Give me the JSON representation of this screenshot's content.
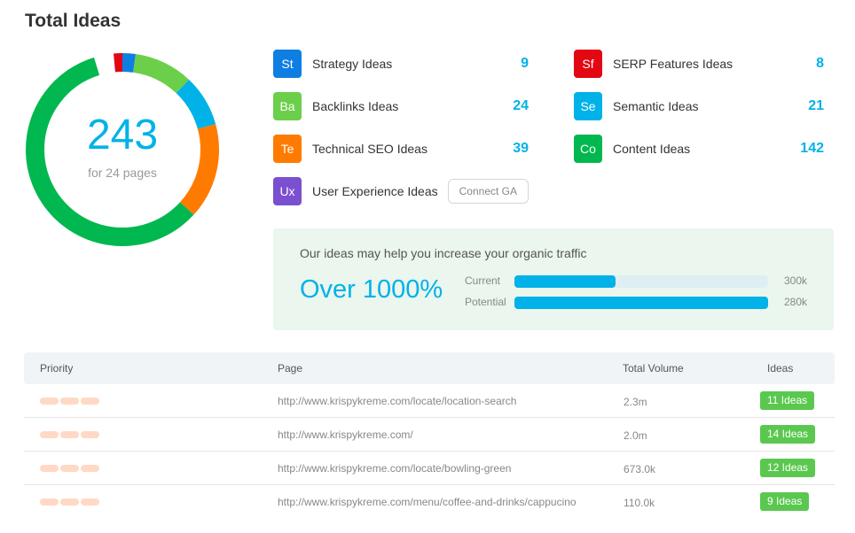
{
  "header": {
    "title": "Total Ideas"
  },
  "summary": {
    "total": "243",
    "subtitle": "for 24 pages"
  },
  "chart_data": {
    "type": "pie",
    "categories": [
      "SERP Features Ideas",
      "Strategy Ideas",
      "Backlinks Ideas",
      "Semantic Ideas",
      "Technical SEO Ideas",
      "Content Ideas"
    ],
    "values": [
      8,
      9,
      24,
      21,
      39,
      142
    ],
    "colors": [
      "#e30613",
      "#0f7ee3",
      "#6ccf4a",
      "#00b2e8",
      "#ff7b00",
      "#00b84f"
    ]
  },
  "ideas": [
    {
      "abbr": "St",
      "label": "Strategy Ideas",
      "count": "9",
      "color": "#0f7ee3",
      "icon": "strategy-icon"
    },
    {
      "abbr": "Ba",
      "label": "Backlinks Ideas",
      "count": "24",
      "color": "#6ccf4a",
      "icon": "backlinks-icon"
    },
    {
      "abbr": "Te",
      "label": "Technical SEO Ideas",
      "count": "39",
      "color": "#ff7b00",
      "icon": "technical-seo-icon"
    },
    {
      "abbr": "Ux",
      "label": "User Experience Ideas",
      "count": "",
      "color": "#7a4fd0",
      "icon": "user-experience-icon",
      "button": "Connect GA"
    },
    {
      "abbr": "Sf",
      "label": "SERP Features Ideas",
      "count": "8",
      "color": "#e30613",
      "icon": "serp-features-icon"
    },
    {
      "abbr": "Se",
      "label": "Semantic Ideas",
      "count": "21",
      "color": "#00b2e8",
      "icon": "semantic-icon"
    },
    {
      "abbr": "Co",
      "label": "Content Ideas",
      "count": "142",
      "color": "#00b84f",
      "icon": "content-icon"
    }
  ],
  "traffic": {
    "heading": "Our ideas may help you increase your organic traffic",
    "headline": "Over 1000%",
    "bars": [
      {
        "label": "Current",
        "value": "300k",
        "fill": 0.4
      },
      {
        "label": "Potential",
        "value": "280k",
        "fill": 1.0
      }
    ]
  },
  "table": {
    "headers": {
      "priority": "Priority",
      "page": "Page",
      "volume": "Total Volume",
      "ideas": "Ideas"
    },
    "rows": [
      {
        "page": "http://www.krispykreme.com/locate/location-search",
        "volume": "2.3m",
        "ideas": "11 Ideas"
      },
      {
        "page": "http://www.krispykreme.com/",
        "volume": "2.0m",
        "ideas": "14 Ideas"
      },
      {
        "page": "http://www.krispykreme.com/locate/bowling-green",
        "volume": "673.0k",
        "ideas": "12 Ideas"
      },
      {
        "page": "http://www.krispykreme.com/menu/coffee-and-drinks/cappucino",
        "volume": "110.0k",
        "ideas": "9 Ideas"
      }
    ]
  }
}
